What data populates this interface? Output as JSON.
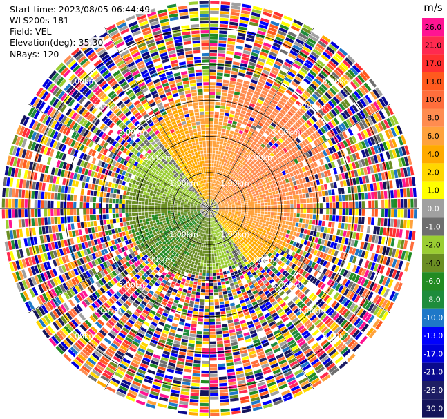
{
  "header": {
    "start_time": "Start time: 2023/08/05 06:44:49",
    "instrument": "WLS200s-181",
    "field": "Field: VEL",
    "elevation": "Elevation(deg): 35.30",
    "nrays": "NRays: 120"
  },
  "chart_data": {
    "type": "heatmap",
    "projection": "polar-ppi",
    "field": "VEL",
    "n_rays": 120,
    "range_rings_km": [
      1.0,
      2.0,
      3.0,
      4.0,
      5.0
    ],
    "range_ring_labels": [
      "1.00km",
      "2.00km",
      "3.00km",
      "4.00km",
      "5.00km"
    ],
    "max_range_km": 5.8,
    "grid": true,
    "colorbar": {
      "unit": "m/s",
      "tick_labels": [
        "26.0",
        "21.0",
        "17.0",
        "13.0",
        "10.0",
        "8.0",
        "6.0",
        "4.0",
        "2.0",
        "1.0",
        "0.0",
        "-1.0",
        "-2.0",
        "-4.0",
        "-6.0",
        "-8.0",
        "-10.0",
        "-13.0",
        "-17.0",
        "-21.0",
        "-26.0",
        "-30.0"
      ],
      "colors": [
        "#ff1493",
        "#ff2a50",
        "#ff3030",
        "#ff5a1e",
        "#ff6e3c",
        "#ff8c50",
        "#ffa23c",
        "#ffaa00",
        "#ffd700",
        "#ffff00",
        "#a0a0a0",
        "#6e6e6e",
        "#9acd32",
        "#6b8e23",
        "#228b22",
        "#1e8c3c",
        "#1e78c8",
        "#0000ff",
        "#0000dc",
        "#0a0a8c",
        "#1e1e64",
        "#14145a"
      ]
    }
  }
}
